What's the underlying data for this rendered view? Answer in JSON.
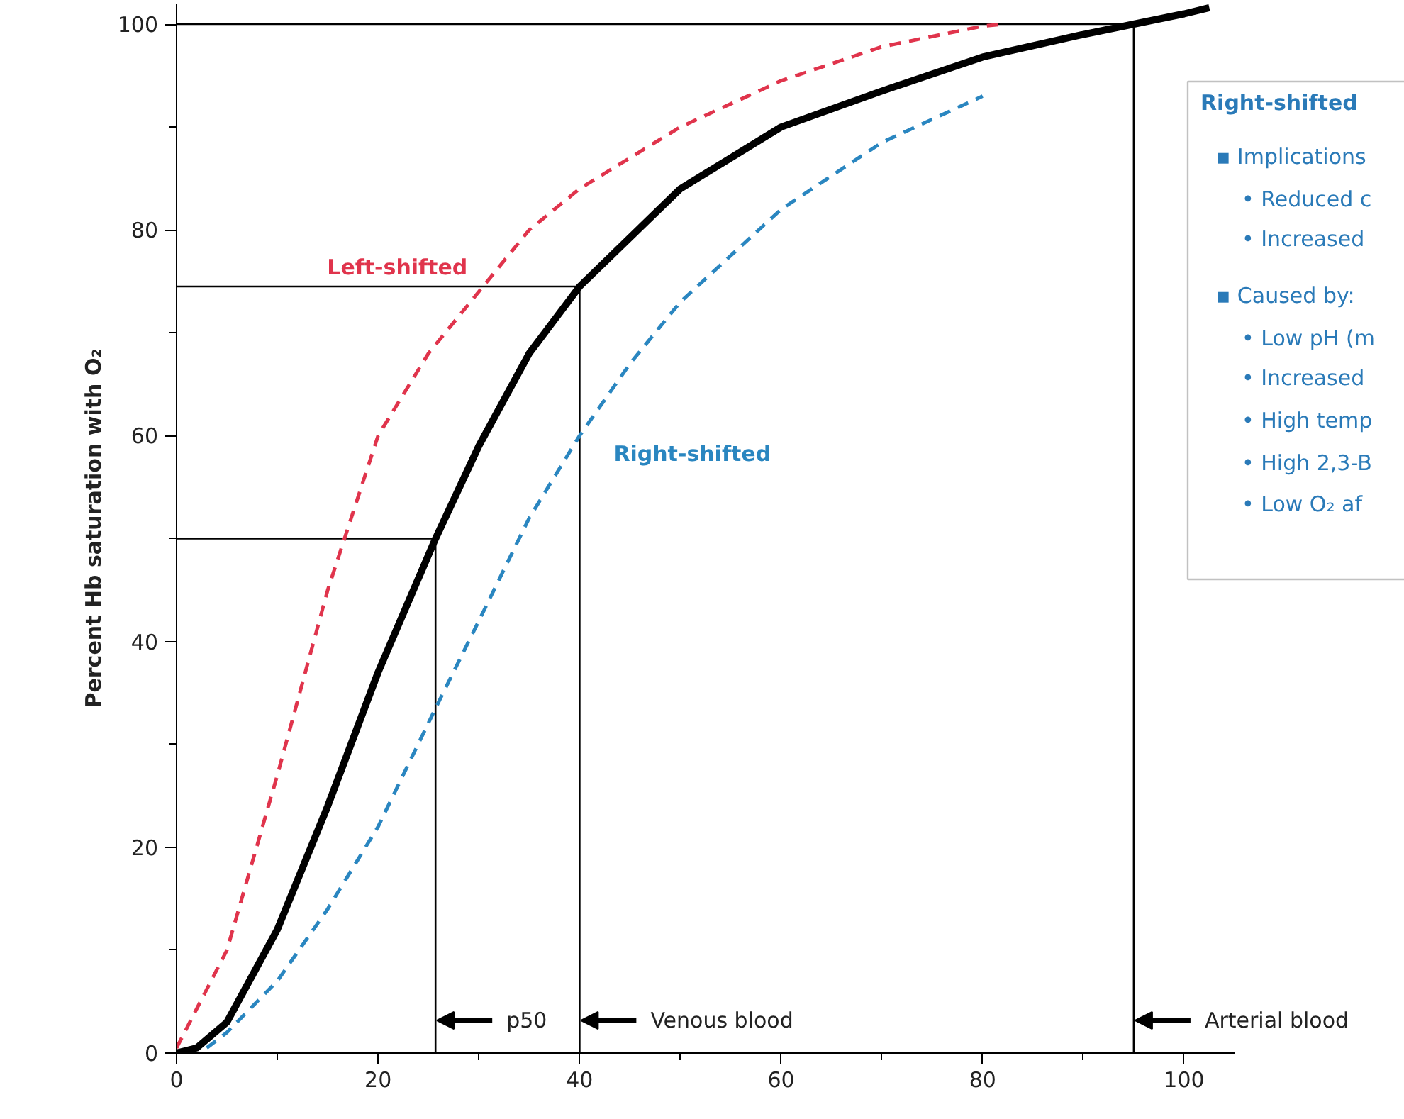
{
  "chart_data": {
    "type": "line",
    "ylabel": "Percent Hb saturation with O₂",
    "xlim": [
      0,
      105
    ],
    "ylim": [
      0,
      102
    ],
    "xticks": [
      0,
      {
        "value": 10,
        "label": null
      },
      20,
      {
        "value": 30,
        "label": null
      },
      40,
      {
        "value": 50,
        "label": null
      },
      60,
      {
        "value": 70,
        "label": null
      },
      80,
      {
        "value": 90,
        "label": null
      },
      100
    ],
    "yticks": [
      0,
      {
        "value": 10,
        "label": null
      },
      20,
      {
        "value": 30,
        "label": null
      },
      40,
      {
        "value": 50,
        "label": null
      },
      60,
      {
        "value": 70,
        "label": null
      },
      80,
      {
        "value": 90,
        "label": null
      },
      100
    ],
    "grid": false,
    "marker": "none",
    "series": [
      {
        "color": "#000000",
        "line_style": "solid",
        "x": [
          0,
          2,
          5,
          10,
          15,
          20,
          25.7,
          30,
          35,
          40,
          50,
          60,
          70,
          80,
          90,
          95,
          100,
          102.5
        ],
        "values": [
          0,
          0.5,
          3,
          12,
          24,
          37,
          50,
          59,
          68,
          74.5,
          84,
          90,
          93.5,
          96.8,
          99,
          100,
          101,
          101.6
        ]
      },
      {
        "name": "Left-shifted",
        "color": "#e0344c",
        "line_style": "dashed",
        "x": [
          0,
          5,
          10,
          15,
          20,
          25,
          30,
          35,
          40,
          50,
          60,
          70,
          80,
          82
        ],
        "values": [
          0.5,
          10,
          27,
          45,
          60,
          68,
          74,
          80,
          84,
          90,
          94.5,
          97.8,
          99.8,
          100
        ]
      },
      {
        "name": "Right-shifted",
        "color": "#2a86c0",
        "line_style": "dashed",
        "x": [
          3,
          5,
          10,
          15,
          20,
          25.7,
          30,
          35,
          40,
          45,
          50,
          60,
          70,
          80
        ],
        "values": [
          0.5,
          2,
          7,
          14,
          22,
          33.5,
          42,
          52,
          60,
          67,
          73,
          82,
          88.5,
          93
        ]
      }
    ],
    "ref_lines": [
      {
        "axis": "x",
        "value": 25.7,
        "label": "p50",
        "color": "#000000"
      },
      {
        "axis": "x",
        "value": 40,
        "label": "Venous blood",
        "color": "#000000"
      },
      {
        "axis": "x",
        "value": 95,
        "label": "Arterial blood",
        "color": "#000000"
      },
      {
        "axis": "y",
        "value": 50,
        "color": "#000000"
      },
      {
        "axis": "y",
        "value": 74.5,
        "color": "#000000"
      },
      {
        "axis": "y",
        "value": 100,
        "color": "#000000"
      }
    ],
    "annotations": [
      "Right-shifted",
      "▪ Implications",
      "• Reduced c",
      "• Increased",
      "▪ Caused by:",
      "• Low pH (m",
      "• Increased",
      "• High temp",
      "• High 2,3-B",
      "• Low O₂ af"
    ]
  }
}
